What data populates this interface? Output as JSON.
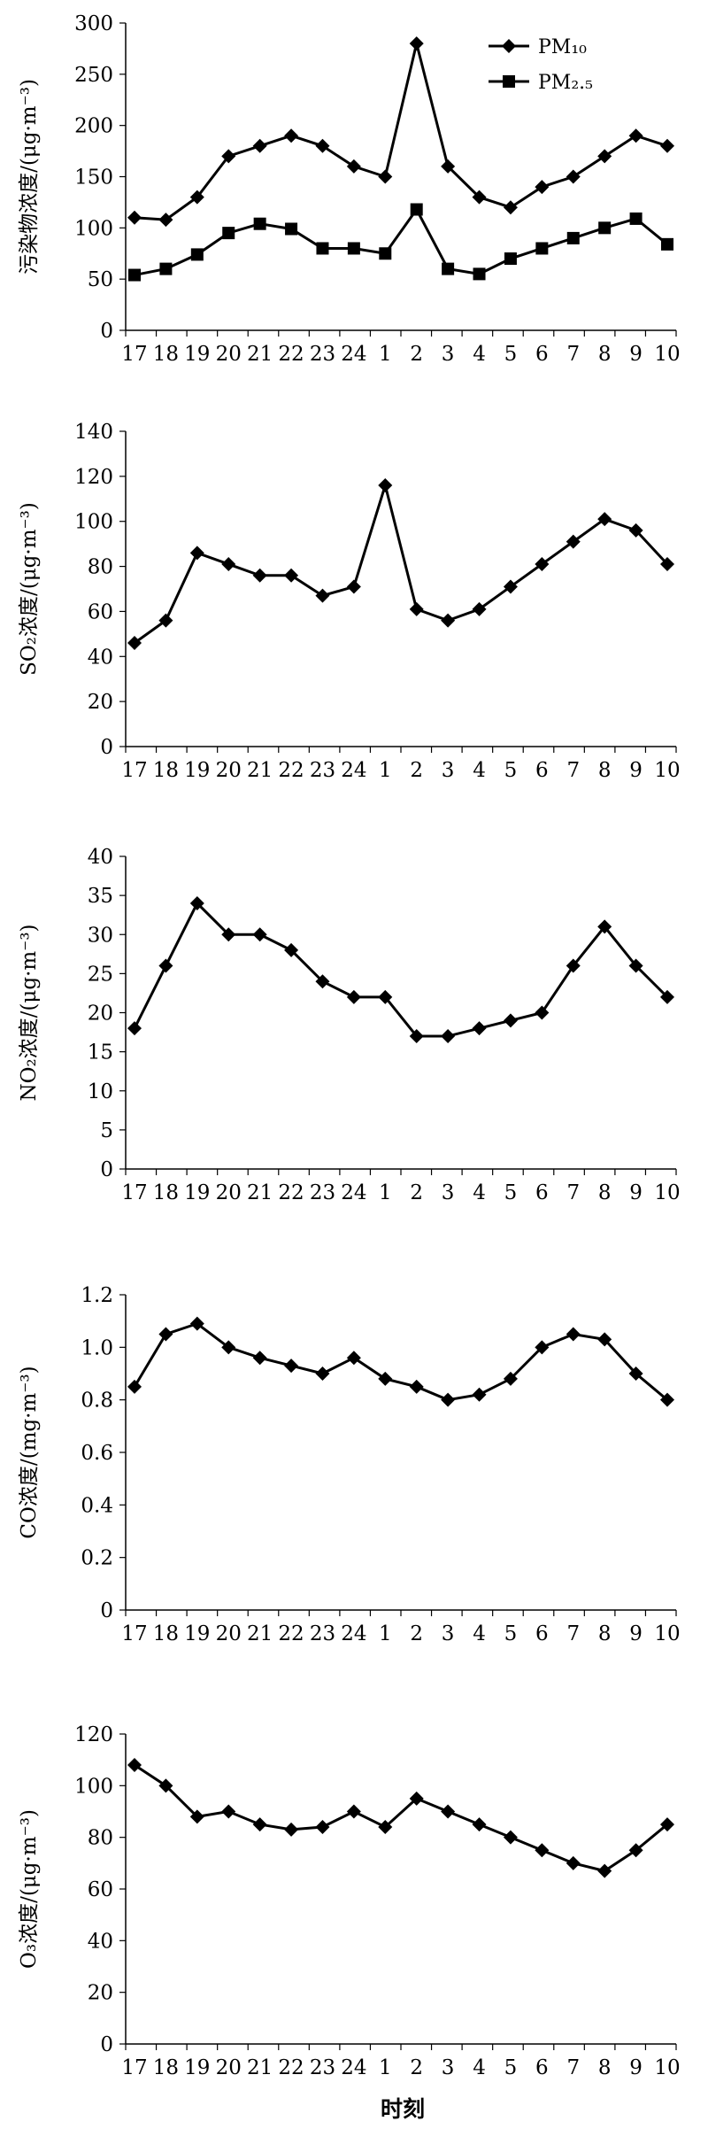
{
  "figure": {
    "xlabel": "时刻"
  },
  "chart_data": [
    {
      "type": "line",
      "x": [
        "17",
        "18",
        "19",
        "20",
        "21",
        "22",
        "23",
        "24",
        "1",
        "2",
        "3",
        "4",
        "5",
        "6",
        "7",
        "8",
        "9",
        "10"
      ],
      "ylabel": "污染物浓度/(μg·m⁻³)",
      "ylim": [
        0,
        300
      ],
      "yticks": [
        0,
        50,
        100,
        150,
        200,
        250,
        300
      ],
      "legend": "top-right",
      "grid": false,
      "series": [
        {
          "name": "PM₁₀",
          "marker": "diamond",
          "values": [
            110,
            108,
            130,
            170,
            180,
            190,
            180,
            160,
            150,
            280,
            160,
            130,
            120,
            140,
            150,
            170,
            190,
            180
          ]
        },
        {
          "name": "PM₂.₅",
          "marker": "square",
          "values": [
            54,
            60,
            74,
            95,
            104,
            99,
            80,
            80,
            75,
            118,
            60,
            55,
            70,
            80,
            90,
            100,
            109,
            84
          ]
        }
      ]
    },
    {
      "type": "line",
      "x": [
        "17",
        "18",
        "19",
        "20",
        "21",
        "22",
        "23",
        "24",
        "1",
        "2",
        "3",
        "4",
        "5",
        "6",
        "7",
        "8",
        "9",
        "10"
      ],
      "ylabel": "SO₂浓度/(μg·m⁻³)",
      "ylim": [
        0,
        140
      ],
      "yticks": [
        0,
        20,
        40,
        60,
        80,
        100,
        120,
        140
      ],
      "grid": false,
      "series": [
        {
          "marker": "diamond",
          "values": [
            46,
            56,
            86,
            81,
            76,
            76,
            67,
            71,
            116,
            61,
            56,
            61,
            71,
            81,
            91,
            101,
            96,
            81
          ]
        }
      ]
    },
    {
      "type": "line",
      "x": [
        "17",
        "18",
        "19",
        "20",
        "21",
        "22",
        "23",
        "24",
        "1",
        "2",
        "3",
        "4",
        "5",
        "6",
        "7",
        "8",
        "9",
        "10"
      ],
      "ylabel": "NO₂浓度/(μg·m⁻³)",
      "ylim": [
        0,
        40
      ],
      "yticks": [
        0,
        5,
        10,
        15,
        20,
        25,
        30,
        35,
        40
      ],
      "grid": false,
      "series": [
        {
          "marker": "diamond",
          "values": [
            18,
            26,
            34,
            30,
            30,
            28,
            24,
            22,
            22,
            17,
            17,
            18,
            19,
            20,
            26,
            31,
            26,
            22
          ]
        }
      ]
    },
    {
      "type": "line",
      "x": [
        "17",
        "18",
        "19",
        "20",
        "21",
        "22",
        "23",
        "24",
        "1",
        "2",
        "3",
        "4",
        "5",
        "6",
        "7",
        "8",
        "9",
        "10"
      ],
      "ylabel": "CO浓度/(mg·m⁻³)",
      "ylim": [
        0,
        1.2
      ],
      "yticks": [
        "0",
        "0.2",
        "0.4",
        "0.6",
        "0.8",
        "1.0",
        "1.2"
      ],
      "grid": false,
      "series": [
        {
          "marker": "diamond",
          "values": [
            0.85,
            1.05,
            1.09,
            1.0,
            0.96,
            0.93,
            0.9,
            0.96,
            0.88,
            0.85,
            0.8,
            0.82,
            0.88,
            1.0,
            1.05,
            1.03,
            0.9,
            0.8
          ]
        }
      ]
    },
    {
      "type": "line",
      "x": [
        "17",
        "18",
        "19",
        "20",
        "21",
        "22",
        "23",
        "24",
        "1",
        "2",
        "3",
        "4",
        "5",
        "6",
        "7",
        "8",
        "9",
        "10"
      ],
      "ylabel": "O₃浓度/(μg·m⁻³)",
      "ylim": [
        0,
        120
      ],
      "yticks": [
        0,
        20,
        40,
        60,
        80,
        100,
        120
      ],
      "grid": false,
      "series": [
        {
          "marker": "diamond",
          "values": [
            108,
            100,
            88,
            90,
            85,
            83,
            84,
            90,
            84,
            95,
            90,
            85,
            80,
            75,
            70,
            67,
            75,
            85
          ]
        }
      ]
    }
  ]
}
